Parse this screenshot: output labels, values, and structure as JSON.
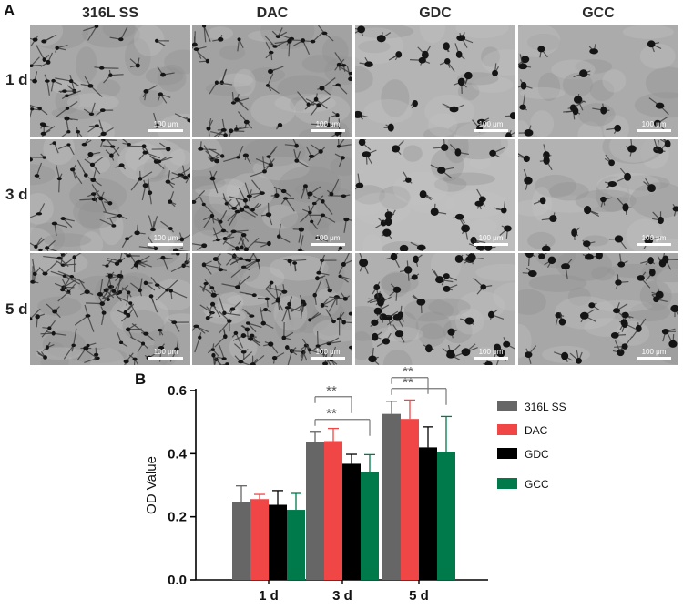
{
  "panel_a": {
    "letter": "A",
    "columns": [
      "316L SS",
      "DAC",
      "GDC",
      "GCC"
    ],
    "rows": [
      "1 d",
      "3 d",
      "5 d"
    ],
    "scale_label": "100 μm"
  },
  "panel_b": {
    "letter": "B"
  },
  "chart_data": {
    "type": "bar",
    "title": "",
    "xlabel": "",
    "ylabel": "OD Value",
    "categories": [
      "1 d",
      "3 d",
      "5 d"
    ],
    "ylim": [
      0.0,
      0.6
    ],
    "yticks": [
      "0.0",
      "0.2",
      "0.4",
      "0.6"
    ],
    "legend_position": "right",
    "grid": false,
    "series": [
      {
        "name": "316L SS",
        "color": "#666666",
        "values": [
          0.248,
          0.438,
          0.526
        ],
        "errors": [
          0.05,
          0.03,
          0.04
        ]
      },
      {
        "name": "DAC",
        "color": "#f04646",
        "values": [
          0.256,
          0.44,
          0.51
        ],
        "errors": [
          0.015,
          0.04,
          0.06
        ]
      },
      {
        "name": "GDC",
        "color": "#000000",
        "values": [
          0.238,
          0.368,
          0.42
        ],
        "errors": [
          0.045,
          0.03,
          0.065
        ]
      },
      {
        "name": "GCC",
        "color": "#007a4a",
        "values": [
          0.222,
          0.342,
          0.406
        ],
        "errors": [
          0.052,
          0.055,
          0.112
        ]
      }
    ],
    "significance": [
      {
        "label": "**",
        "category": "3 d",
        "from_series": 0,
        "to_series": 3
      },
      {
        "label": "**",
        "category": "3 d",
        "from_series": 0,
        "to_series": 2
      },
      {
        "label": "**",
        "category": "5 d",
        "from_series": 0,
        "to_series": 3
      },
      {
        "label": "**",
        "category": "5 d",
        "from_series": 0,
        "to_series": 2
      }
    ]
  }
}
